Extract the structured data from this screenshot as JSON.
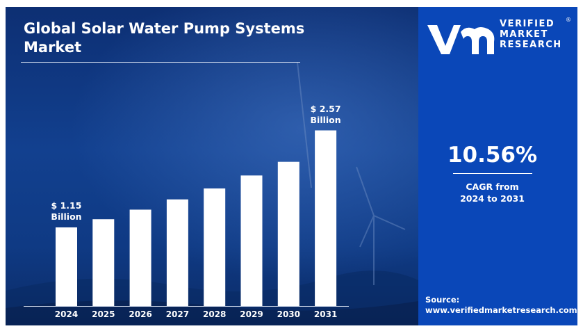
{
  "chart_data": {
    "type": "bar",
    "title": "Global Solar Water Pump Systems Market",
    "categories": [
      "2024",
      "2025",
      "2026",
      "2027",
      "2028",
      "2029",
      "2030",
      "2031"
    ],
    "values": [
      1.15,
      1.27,
      1.41,
      1.56,
      1.72,
      1.91,
      2.11,
      2.57
    ],
    "unit": "Billion",
    "ylim": [
      0,
      2.85
    ],
    "grid": false,
    "legend": "none",
    "bar_color": "#ffffff",
    "annotations": [
      {
        "category": "2024",
        "line1": "$ 1.15",
        "line2": "Billion"
      },
      {
        "category": "2031",
        "line1": "$ 2.57",
        "line2": "Billion"
      }
    ]
  },
  "brand": {
    "name_line1": "VERIFIED",
    "name_line2": "MARKET",
    "name_line3": "RESEARCH",
    "registered": "®",
    "accent": "#0a47b8"
  },
  "cagr": {
    "value": "10.56%",
    "caption_line1": "CAGR from",
    "caption_line2": "2024 to 2031"
  },
  "source": {
    "label": "Source:",
    "url": "www.verifiedmarketresearch.com"
  }
}
